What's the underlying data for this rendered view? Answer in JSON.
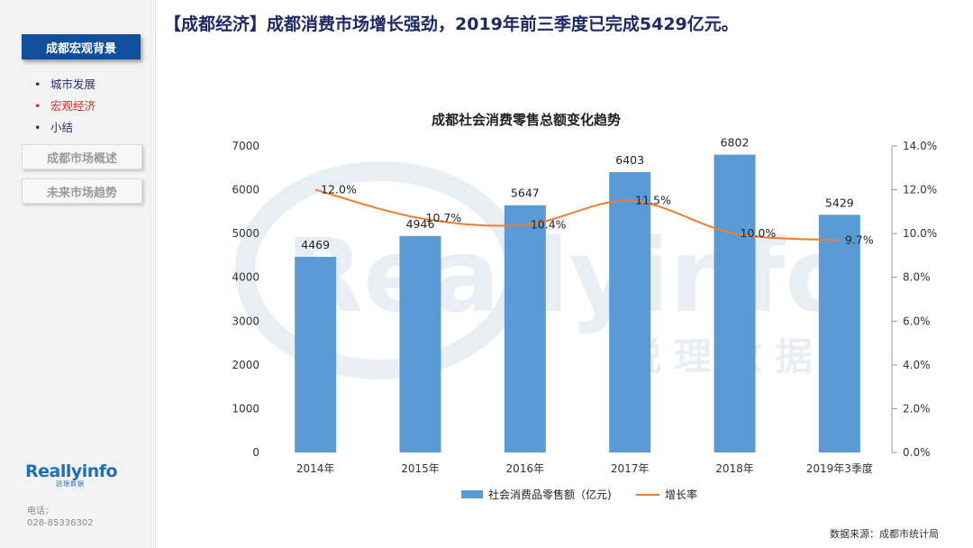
{
  "header": {
    "title": "【成都经济】成都消费市场增长强劲，2019年前三季度已完成5429亿元。"
  },
  "sidebar": {
    "active_section": "成都宏观背景",
    "sub_items": [
      {
        "label": "城市发展",
        "active": false
      },
      {
        "label": "宏观经济",
        "active": true
      },
      {
        "label": "小结",
        "active": false
      }
    ],
    "sections": [
      "成都市场概述",
      "未来市场趋势"
    ],
    "logo_text": "Reallyinfo",
    "logo_sub": "锐理数据",
    "contact_label": "电话：",
    "contact_phone": "028-85336302"
  },
  "footer": {
    "source": "数据来源：成都市统计局"
  },
  "watermark": {
    "text": "Reallyinfo",
    "sub": "锐理数据"
  },
  "chart_data": {
    "type": "bar",
    "title": "成都社会消费零售总额变化趋势",
    "categories": [
      "2014年",
      "2015年",
      "2016年",
      "2017年",
      "2018年",
      "2019年3季度"
    ],
    "series": [
      {
        "name": "社会消费品零售额（亿元",
        "type": "bar",
        "axis": "left",
        "color": "#5b9bd5",
        "values": [
          4469,
          4946,
          5647,
          6403,
          6802,
          5429
        ],
        "labels": [
          "4469",
          "4946",
          "5647",
          "6403",
          "6802",
          "5429"
        ]
      },
      {
        "name": "增长率",
        "type": "line",
        "axis": "right",
        "color": "#ed7d31",
        "values": [
          12.0,
          10.7,
          10.4,
          11.5,
          10.0,
          9.7
        ],
        "labels": [
          "12.0%",
          "10.7%",
          "10.4%",
          "11.5%",
          "10.0%",
          "9.7%"
        ]
      }
    ],
    "y_left": {
      "min": 0,
      "max": 7000,
      "ticks": [
        "0",
        "1000",
        "2000",
        "3000",
        "4000",
        "5000",
        "6000",
        "7000"
      ]
    },
    "y_right": {
      "min": 0,
      "max": 14,
      "ticks": [
        "0.0%",
        "2.0%",
        "4.0%",
        "6.0%",
        "8.0%",
        "10.0%",
        "12.0%",
        "14.0%"
      ]
    },
    "grid": false,
    "legend": "bottom"
  }
}
